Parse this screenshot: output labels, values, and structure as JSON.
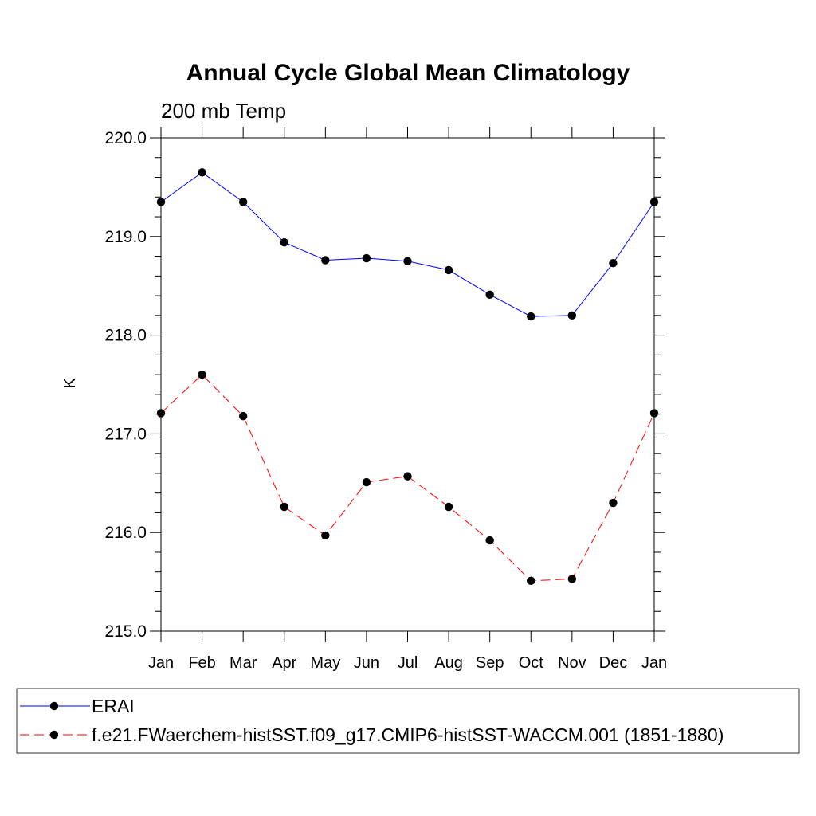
{
  "chart_data": {
    "type": "line",
    "title": "Annual Cycle Global Mean Climatology",
    "subtitle": "200 mb Temp",
    "xlabel": "",
    "ylabel": "K",
    "categories": [
      "Jan",
      "Feb",
      "Mar",
      "Apr",
      "May",
      "Jun",
      "Jul",
      "Aug",
      "Sep",
      "Oct",
      "Nov",
      "Dec",
      "Jan"
    ],
    "ylim": [
      215.0,
      220.0
    ],
    "yticks": [
      {
        "value": 215.0,
        "label": "215.0"
      },
      {
        "value": 216.0,
        "label": "216.0"
      },
      {
        "value": 217.0,
        "label": "217.0"
      },
      {
        "value": 218.0,
        "label": "218.0"
      },
      {
        "value": 219.0,
        "label": "219.0"
      },
      {
        "value": 220.0,
        "label": "220.0"
      }
    ],
    "yminor_step": 0.2,
    "grid": false,
    "legend_position": "bottom",
    "series": [
      {
        "name": "ERAI",
        "color": "#0000ff",
        "dash": "solid",
        "marker": "filled-circle",
        "values": [
          219.35,
          219.65,
          219.35,
          218.94,
          218.76,
          218.78,
          218.75,
          218.66,
          218.41,
          218.19,
          218.2,
          218.73,
          219.35
        ]
      },
      {
        "name": "f.e21.FWaerchem-histSST.f09_g17.CMIP6-histSST-WACCM.001 (1851-1880)",
        "color": "#ff0000",
        "dash": "dashed",
        "marker": "filled-circle",
        "values": [
          217.21,
          217.6,
          217.18,
          216.26,
          215.97,
          216.51,
          216.57,
          216.26,
          215.92,
          215.51,
          215.53,
          216.3,
          217.21
        ]
      }
    ]
  }
}
